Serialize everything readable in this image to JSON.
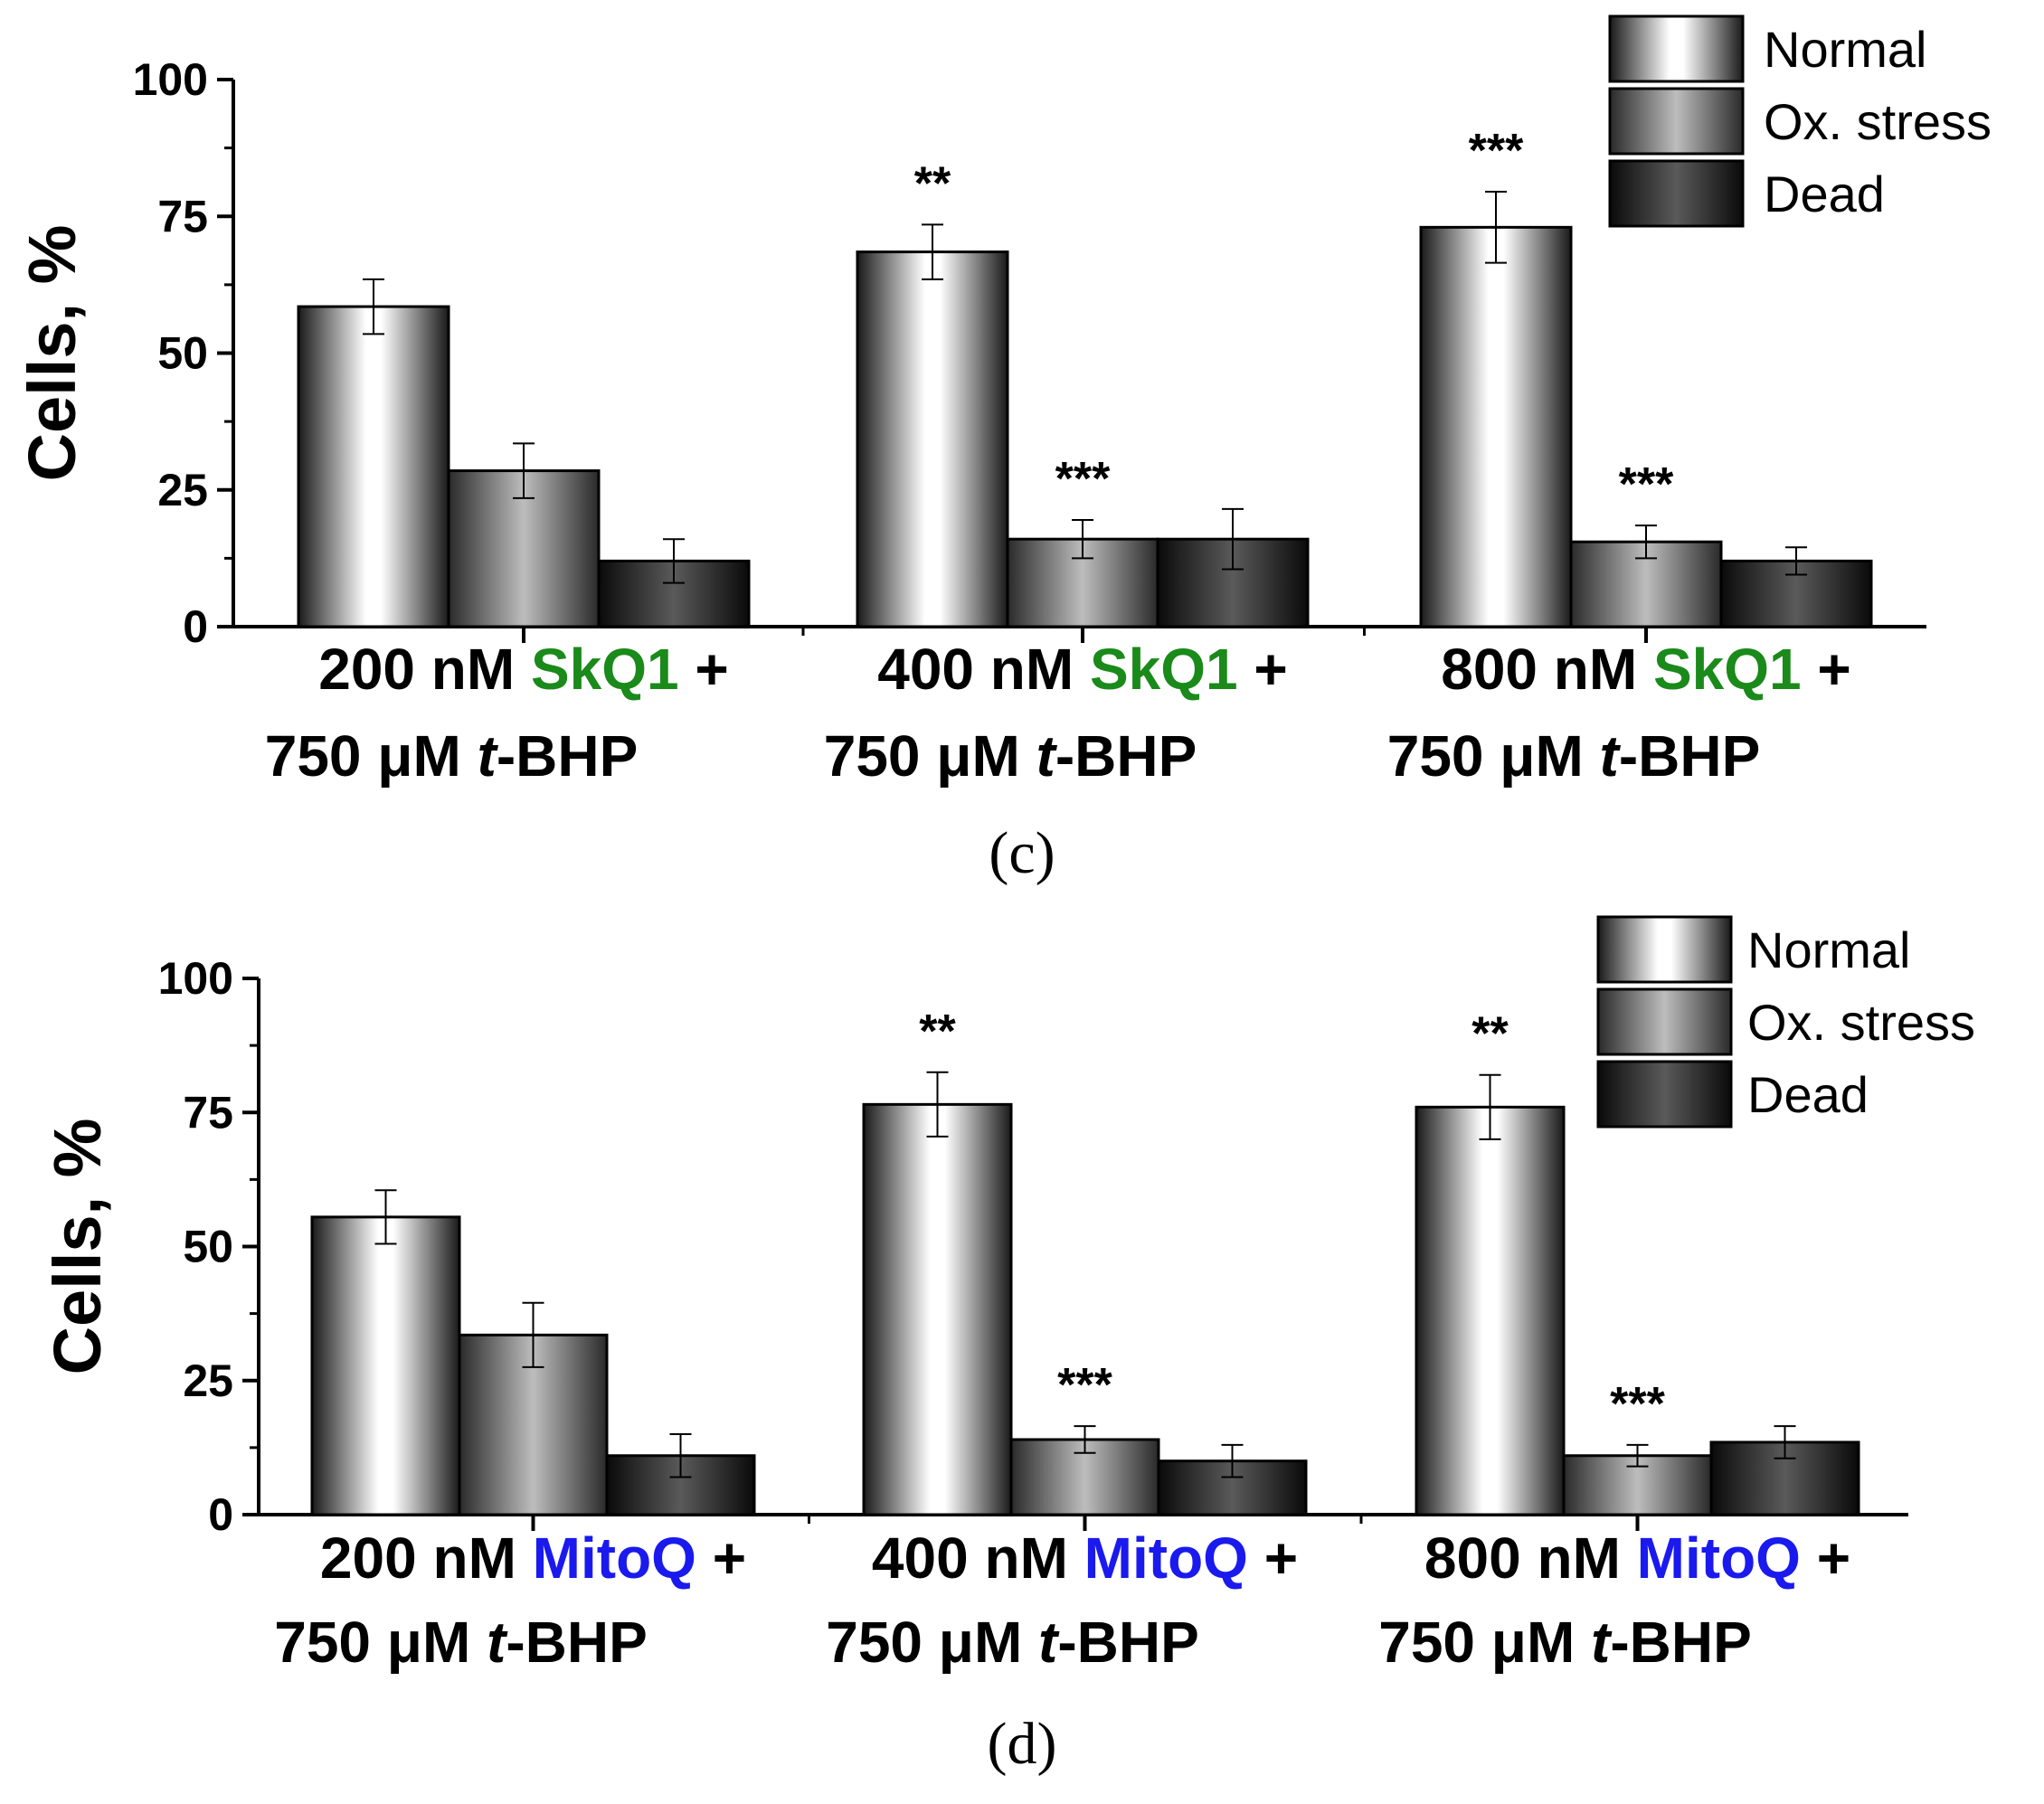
{
  "colors": {
    "axis": "#000000",
    "skq1": "#1a8a1a",
    "mitoq": "#1a1aee"
  },
  "chart_data": [
    {
      "type": "bar",
      "panel_label": "(c)",
      "ylabel": "Cells, %",
      "ylim": [
        0,
        100
      ],
      "yticks": [
        "0",
        "25",
        "50",
        "75",
        "100"
      ],
      "categories": [
        {
          "line1_pre": "200 nM ",
          "drug": "SkQ1",
          "line1_post": " +",
          "line2_pre": "750 μM ",
          "line2_ital": "t",
          "line2_post": "-BHP"
        },
        {
          "line1_pre": "400 nM ",
          "drug": "SkQ1",
          "line1_post": " +",
          "line2_pre": "750 μM ",
          "line2_ital": "t",
          "line2_post": "-BHP"
        },
        {
          "line1_pre": "800 nM ",
          "drug": "SkQ1",
          "line1_post": " +",
          "line2_pre": "750 μM ",
          "line2_ital": "t",
          "line2_post": "-BHP"
        }
      ],
      "drug_color": "skq1",
      "series": [
        {
          "name": "Normal",
          "values": [
            58.5,
            68.5,
            73
          ],
          "errors": [
            5,
            5,
            6.5
          ],
          "significance": [
            "",
            "**",
            "***"
          ]
        },
        {
          "name": "Ox. stress",
          "values": [
            28.5,
            16,
            15.5
          ],
          "errors": [
            5,
            3.5,
            3
          ],
          "significance": [
            "",
            "***",
            "***"
          ]
        },
        {
          "name": "Dead",
          "values": [
            12,
            16,
            12
          ],
          "errors": [
            4,
            5.5,
            2.5
          ],
          "significance": [
            "",
            "",
            ""
          ]
        }
      ]
    },
    {
      "type": "bar",
      "panel_label": "(d)",
      "ylabel": "Cells, %",
      "ylim": [
        0,
        100
      ],
      "yticks": [
        "0",
        "25",
        "50",
        "75",
        "100"
      ],
      "categories": [
        {
          "line1_pre": "200 nM ",
          "drug": "MitoQ",
          "line1_post": " +",
          "line2_pre": "750 μM ",
          "line2_ital": "t",
          "line2_post": "-BHP"
        },
        {
          "line1_pre": "400 nM ",
          "drug": "MitoQ",
          "line1_post": " +",
          "line2_pre": "750 μM ",
          "line2_ital": "t",
          "line2_post": "-BHP"
        },
        {
          "line1_pre": "800 nM ",
          "drug": "MitoQ",
          "line1_post": " +",
          "line2_pre": "750 μM ",
          "line2_ital": "t",
          "line2_post": "-BHP"
        }
      ],
      "drug_color": "mitoq",
      "series": [
        {
          "name": "Normal",
          "values": [
            55.5,
            76.5,
            76
          ],
          "errors": [
            5,
            6,
            6
          ],
          "significance": [
            "",
            "**",
            "**"
          ]
        },
        {
          "name": "Ox. stress",
          "values": [
            33.5,
            14,
            11
          ],
          "errors": [
            6,
            2.5,
            2
          ],
          "significance": [
            "",
            "***",
            "***"
          ]
        },
        {
          "name": "Dead",
          "values": [
            11,
            10,
            13.5
          ],
          "errors": [
            4,
            3,
            3
          ],
          "significance": [
            "",
            "",
            ""
          ]
        }
      ]
    }
  ]
}
